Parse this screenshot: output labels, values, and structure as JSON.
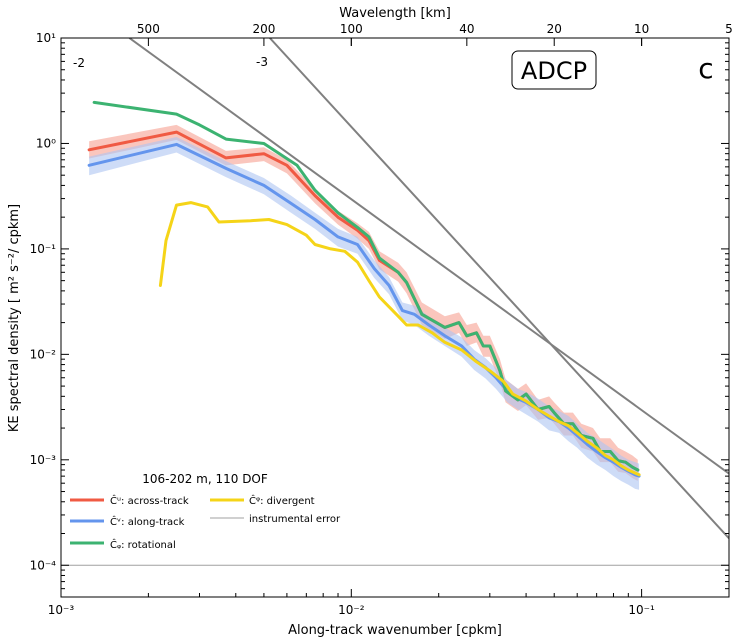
{
  "chart_data": {
    "type": "line",
    "title": "",
    "xlabel": "Along-track wavenumber [cpkm]",
    "ylabel": "KE spectral density [ m² s⁻²/ cpkm]",
    "top_xlabel": "Wavelength [km]",
    "xscale": "log",
    "yscale": "log",
    "xlim": [
      0.001,
      0.2
    ],
    "ylim": [
      5e-05,
      10
    ],
    "x_ticks": [
      {
        "value": 0.001,
        "label": "10⁻³"
      },
      {
        "value": 0.01,
        "label": "10⁻²"
      },
      {
        "value": 0.1,
        "label": "10⁻¹"
      }
    ],
    "y_ticks": [
      {
        "value": 0.0001,
        "label": "10⁻⁴"
      },
      {
        "value": 0.001,
        "label": "10⁻³"
      },
      {
        "value": 0.01,
        "label": "10⁻²"
      },
      {
        "value": 0.1,
        "label": "10⁻¹"
      },
      {
        "value": 1,
        "label": "10⁰"
      },
      {
        "value": 10,
        "label": "10¹"
      }
    ],
    "top_ticks": [
      {
        "value": 500,
        "label": "500"
      },
      {
        "value": 200,
        "label": "200"
      },
      {
        "value": 100,
        "label": "100"
      },
      {
        "value": 40,
        "label": "40"
      },
      {
        "value": 20,
        "label": "20"
      },
      {
        "value": 10,
        "label": "10"
      },
      {
        "value": 5,
        "label": "5"
      }
    ],
    "panel_label": "ADCP",
    "panel_letter": "c",
    "annotation": "106-202 m, 110 DOF",
    "grid": false,
    "legend_position": "lower-left",
    "series": [
      {
        "name": "Ĉᵘ: across-track",
        "color": "#f05a43",
        "band_color": "#f7a091",
        "x": [
          0.00125,
          0.0025,
          0.0037,
          0.005,
          0.006,
          0.0075,
          0.009,
          0.0105,
          0.0115,
          0.0125,
          0.0145,
          0.0155,
          0.0175,
          0.021,
          0.0235,
          0.025,
          0.027,
          0.0285,
          0.03,
          0.0325,
          0.034,
          0.0375,
          0.04,
          0.044,
          0.048,
          0.05,
          0.054,
          0.058,
          0.062,
          0.068,
          0.072,
          0.078,
          0.083,
          0.088,
          0.093,
          0.097
        ],
        "values": [
          0.87,
          1.28,
          0.73,
          0.8,
          0.62,
          0.32,
          0.2,
          0.15,
          0.12,
          0.078,
          0.06,
          0.048,
          0.024,
          0.018,
          0.02,
          0.015,
          0.016,
          0.012,
          0.012,
          0.007,
          0.0045,
          0.0037,
          0.0042,
          0.003,
          0.0032,
          0.0028,
          0.0022,
          0.0022,
          0.0017,
          0.0016,
          0.0012,
          0.0012,
          0.00098,
          0.00095,
          0.00085,
          0.0008
        ],
        "upper": [
          1.05,
          1.5,
          0.85,
          0.92,
          0.7,
          0.37,
          0.23,
          0.175,
          0.145,
          0.095,
          0.074,
          0.06,
          0.031,
          0.023,
          0.025,
          0.019,
          0.02,
          0.015,
          0.015,
          0.009,
          0.0058,
          0.0047,
          0.0053,
          0.0037,
          0.004,
          0.0035,
          0.0028,
          0.0028,
          0.0022,
          0.002,
          0.0016,
          0.0016,
          0.0013,
          0.0012,
          0.0011,
          0.001
        ],
        "lower": [
          0.72,
          1.08,
          0.62,
          0.68,
          0.52,
          0.27,
          0.17,
          0.125,
          0.1,
          0.064,
          0.049,
          0.038,
          0.019,
          0.014,
          0.016,
          0.012,
          0.013,
          0.0095,
          0.0095,
          0.0055,
          0.0035,
          0.0029,
          0.0033,
          0.0024,
          0.0025,
          0.0022,
          0.0017,
          0.0017,
          0.0013,
          0.0012,
          0.00095,
          0.00095,
          0.00077,
          0.00075,
          0.00067,
          0.00063
        ]
      },
      {
        "name": "Ĉᵛ: along-track",
        "color": "#6495ed",
        "band_color": "#aec4f2",
        "x": [
          0.00125,
          0.0025,
          0.0037,
          0.005,
          0.0062,
          0.0075,
          0.009,
          0.0105,
          0.012,
          0.0135,
          0.015,
          0.0165,
          0.0185,
          0.021,
          0.024,
          0.0265,
          0.029,
          0.0315,
          0.0345,
          0.0375,
          0.04,
          0.044,
          0.048,
          0.052,
          0.056,
          0.06,
          0.065,
          0.07,
          0.075,
          0.08,
          0.085,
          0.09,
          0.095,
          0.098
        ],
        "values": [
          0.62,
          0.98,
          0.58,
          0.4,
          0.27,
          0.19,
          0.13,
          0.11,
          0.065,
          0.045,
          0.026,
          0.024,
          0.019,
          0.015,
          0.012,
          0.009,
          0.0075,
          0.006,
          0.0045,
          0.0038,
          0.0035,
          0.003,
          0.0025,
          0.0023,
          0.002,
          0.0017,
          0.0014,
          0.0012,
          0.00105,
          0.00095,
          0.00085,
          0.00078,
          0.00072,
          0.0007
        ],
        "upper": [
          0.75,
          1.15,
          0.68,
          0.47,
          0.32,
          0.22,
          0.155,
          0.13,
          0.078,
          0.054,
          0.031,
          0.029,
          0.023,
          0.018,
          0.0145,
          0.011,
          0.0092,
          0.0074,
          0.0056,
          0.0047,
          0.0044,
          0.0038,
          0.0032,
          0.0029,
          0.0026,
          0.0022,
          0.0018,
          0.0016,
          0.0014,
          0.00125,
          0.0011,
          0.001,
          0.00095,
          0.00092
        ],
        "lower": [
          0.5,
          0.82,
          0.48,
          0.33,
          0.22,
          0.155,
          0.105,
          0.09,
          0.053,
          0.037,
          0.021,
          0.019,
          0.015,
          0.012,
          0.0095,
          0.0071,
          0.0059,
          0.0047,
          0.0035,
          0.003,
          0.0027,
          0.0023,
          0.0019,
          0.0018,
          0.0015,
          0.0013,
          0.00105,
          0.0009,
          0.0008,
          0.0007,
          0.00063,
          0.00058,
          0.00053,
          0.00052
        ]
      },
      {
        "name": "Ĉᵩ: rotational",
        "color": "#3cb371",
        "x": [
          0.0013,
          0.0025,
          0.003,
          0.0037,
          0.005,
          0.0065,
          0.0075,
          0.009,
          0.0105,
          0.0115,
          0.0125,
          0.0145,
          0.0155,
          0.0175,
          0.021,
          0.0235,
          0.025,
          0.027,
          0.0285,
          0.03,
          0.0325,
          0.034,
          0.0375,
          0.04,
          0.044,
          0.048,
          0.05,
          0.054,
          0.058,
          0.062,
          0.068,
          0.072,
          0.078,
          0.083,
          0.088,
          0.093,
          0.097
        ],
        "values": [
          2.45,
          1.9,
          1.5,
          1.1,
          1.0,
          0.62,
          0.36,
          0.22,
          0.16,
          0.13,
          0.082,
          0.06,
          0.048,
          0.024,
          0.018,
          0.02,
          0.015,
          0.016,
          0.012,
          0.012,
          0.007,
          0.0045,
          0.0037,
          0.0042,
          0.003,
          0.0032,
          0.0028,
          0.0022,
          0.0022,
          0.0017,
          0.0016,
          0.0012,
          0.0012,
          0.00098,
          0.00095,
          0.00085,
          0.0008
        ]
      },
      {
        "name": "Ĉᵠ: divergent",
        "color": "#f5d418",
        "x": [
          0.0022,
          0.0023,
          0.0025,
          0.0028,
          0.0032,
          0.0035,
          0.0045,
          0.0052,
          0.006,
          0.007,
          0.0075,
          0.0085,
          0.0095,
          0.0105,
          0.0115,
          0.0125,
          0.0145,
          0.0155,
          0.017,
          0.019,
          0.021,
          0.024,
          0.027,
          0.03,
          0.0335,
          0.036,
          0.04,
          0.044,
          0.048,
          0.052,
          0.056,
          0.06,
          0.065,
          0.07,
          0.075,
          0.08,
          0.085,
          0.09,
          0.095,
          0.098
        ],
        "values": [
          0.045,
          0.12,
          0.26,
          0.275,
          0.25,
          0.18,
          0.185,
          0.19,
          0.17,
          0.135,
          0.11,
          0.1,
          0.095,
          0.075,
          0.05,
          0.035,
          0.023,
          0.019,
          0.019,
          0.016,
          0.013,
          0.011,
          0.0085,
          0.007,
          0.0055,
          0.0042,
          0.0036,
          0.003,
          0.0026,
          0.0023,
          0.0021,
          0.0018,
          0.0015,
          0.0013,
          0.0011,
          0.001,
          0.00088,
          0.0008,
          0.00075,
          0.00072
        ]
      }
    ],
    "reference_lines": [
      {
        "label": "-2",
        "slope": -2,
        "color": "#808080",
        "x": [
          0.00172,
          0.2
        ],
        "values": [
          10,
          0.00074
        ]
      },
      {
        "label": "-3",
        "slope": -3,
        "color": "#808080",
        "x": [
          0.00524,
          0.2
        ],
        "values": [
          10,
          0.00018
        ]
      }
    ],
    "instrumental_error": {
      "label": "instrumental error",
      "value": 0.0001,
      "color": "#a0a0a0"
    }
  }
}
